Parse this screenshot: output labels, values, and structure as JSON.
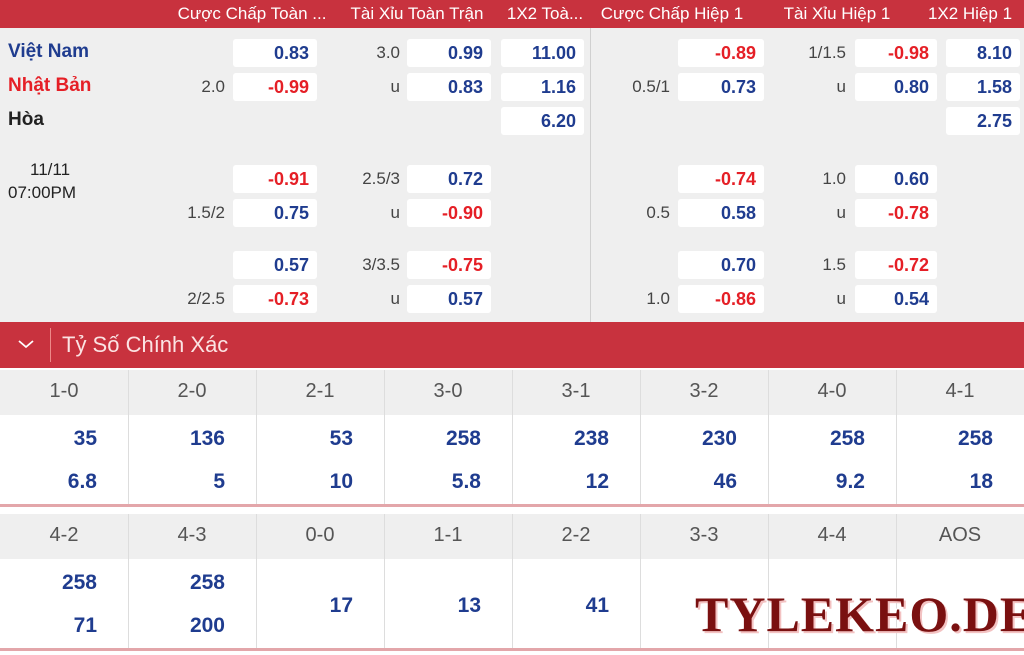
{
  "header": {
    "columns": [
      "Cược Chấp Toàn ...",
      "Tài Xỉu Toàn Trận",
      "1X2 Toà...",
      "Cược Chấp Hiệp 1",
      "Tài Xỉu Hiệp 1",
      "1X2 Hiệp 1"
    ]
  },
  "match": {
    "date": "11/11",
    "time": "07:00PM",
    "rows": [
      [
        "Việt Nam",
        null,
        "0.83",
        "3.0",
        "0.99",
        "11.00",
        null,
        "-0.89",
        "1/1.5",
        "-0.98",
        "8.10"
      ],
      [
        "Nhật Bản",
        "2.0",
        "-0.99",
        "u",
        "0.83",
        "1.16",
        "0.5/1",
        "0.73",
        "u",
        "0.80",
        "1.58"
      ],
      [
        "Hòa",
        null,
        null,
        null,
        null,
        "6.20",
        null,
        null,
        null,
        null,
        "2.75"
      ],
      [
        null,
        null,
        "-0.91",
        "2.5/3",
        "0.72",
        null,
        null,
        "-0.74",
        "1.0",
        "0.60",
        null
      ],
      [
        null,
        "1.5/2",
        "0.75",
        "u",
        "-0.90",
        null,
        "0.5",
        "0.58",
        "u",
        "-0.78",
        null
      ],
      [
        null,
        null,
        "0.57",
        "3/3.5",
        "-0.75",
        null,
        null,
        "0.70",
        "1.5",
        "-0.72",
        null
      ],
      [
        null,
        "2/2.5",
        "-0.73",
        "u",
        "0.57",
        null,
        "1.0",
        "-0.86",
        "u",
        "0.54",
        null
      ]
    ]
  },
  "correct_score": {
    "title": "Tỷ Số Chính Xác",
    "blocks": [
      {
        "scores": [
          "1-0",
          "2-0",
          "2-1",
          "3-0",
          "3-1",
          "3-2",
          "4-0",
          "4-1"
        ],
        "top": [
          "35",
          "136",
          "53",
          "258",
          "238",
          "230",
          "258",
          "258"
        ],
        "bottom": [
          "6.8",
          "5",
          "10",
          "5.8",
          "12",
          "46",
          "9.2",
          "18"
        ]
      },
      {
        "scores": [
          "4-2",
          "4-3",
          "0-0",
          "1-1",
          "2-2",
          "3-3",
          "4-4",
          "AOS"
        ],
        "top": [
          "258",
          "258",
          null,
          null,
          null,
          null,
          null,
          null
        ],
        "bottom": [
          "71",
          "200",
          null,
          null,
          null,
          null,
          null,
          null
        ],
        "single": [
          null,
          null,
          "17",
          "13",
          "41",
          null,
          null,
          null
        ]
      }
    ]
  },
  "watermark": "TYLEKEO.DE"
}
